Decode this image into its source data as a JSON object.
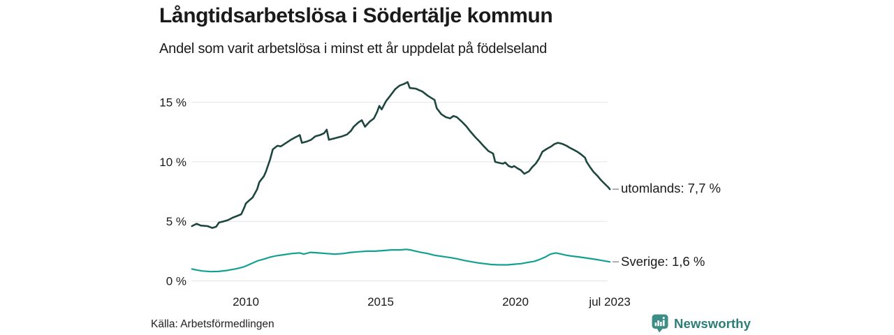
{
  "header": {
    "title": "Långtidsarbetslösa i Södertälje kommun",
    "subtitle": "Andel som varit arbetslösa i minst ett år uppdelat på födelseland"
  },
  "source": {
    "label": "Källa: Arbetsförmedlingen"
  },
  "branding": {
    "name": "Newsworthy",
    "text_color": "#2d7d77",
    "icon_color": "#3c8d86"
  },
  "colors": {
    "grid": "#e3e3e3",
    "axis_text": "#1a1a1a",
    "leader_dash": "#9b9b9b"
  },
  "chart_data": {
    "type": "line",
    "title": "Långtidsarbetslösa i Södertälje kommun",
    "subtitle": "Andel som varit arbetslösa i minst ett år uppdelat på födelseland",
    "unit": "%",
    "grid": true,
    "legend_position": "end-of-line-labels",
    "x_axis": {
      "range": [
        2008.0,
        2023.58
      ],
      "ticks": [
        {
          "value": 2010,
          "label": "2010"
        },
        {
          "value": 2015,
          "label": "2015"
        },
        {
          "value": 2020,
          "label": "2020"
        },
        {
          "value": 2023.5,
          "label": "jul 2023"
        }
      ]
    },
    "y_axis": {
      "range": [
        0,
        17.5
      ],
      "ticks": [
        {
          "value": 0,
          "label": "0 %"
        },
        {
          "value": 5,
          "label": "5 %"
        },
        {
          "value": 10,
          "label": "10 %"
        },
        {
          "value": 15,
          "label": "15 %"
        }
      ]
    },
    "series": [
      {
        "name": "utomlands",
        "label": "utomlands: 7,7 %",
        "last_value": 7.7,
        "color": "#1d463e",
        "stroke_width": 2.6,
        "points": [
          [
            2008.0,
            4.6
          ],
          [
            2008.17,
            4.8
          ],
          [
            2008.33,
            4.65
          ],
          [
            2008.58,
            4.6
          ],
          [
            2008.75,
            4.45
          ],
          [
            2008.9,
            4.55
          ],
          [
            2009.0,
            4.9
          ],
          [
            2009.17,
            5.0
          ],
          [
            2009.33,
            5.1
          ],
          [
            2009.5,
            5.3
          ],
          [
            2009.67,
            5.45
          ],
          [
            2009.83,
            5.6
          ],
          [
            2009.95,
            6.2
          ],
          [
            2010.0,
            6.5
          ],
          [
            2010.17,
            6.85
          ],
          [
            2010.25,
            7.0
          ],
          [
            2010.42,
            7.7
          ],
          [
            2010.5,
            8.3
          ],
          [
            2010.67,
            8.8
          ],
          [
            2010.75,
            9.2
          ],
          [
            2010.9,
            10.2
          ],
          [
            2011.0,
            11.05
          ],
          [
            2011.17,
            11.35
          ],
          [
            2011.3,
            11.3
          ],
          [
            2011.5,
            11.6
          ],
          [
            2011.67,
            11.85
          ],
          [
            2011.83,
            12.05
          ],
          [
            2012.0,
            12.25
          ],
          [
            2012.08,
            11.6
          ],
          [
            2012.25,
            11.7
          ],
          [
            2012.42,
            11.85
          ],
          [
            2012.58,
            12.15
          ],
          [
            2012.75,
            12.25
          ],
          [
            2012.9,
            12.4
          ],
          [
            2013.0,
            12.7
          ],
          [
            2013.08,
            11.85
          ],
          [
            2013.25,
            11.95
          ],
          [
            2013.42,
            12.05
          ],
          [
            2013.58,
            12.15
          ],
          [
            2013.75,
            12.3
          ],
          [
            2013.9,
            12.6
          ],
          [
            2014.0,
            12.95
          ],
          [
            2014.17,
            13.3
          ],
          [
            2014.3,
            13.5
          ],
          [
            2014.42,
            12.95
          ],
          [
            2014.58,
            13.35
          ],
          [
            2014.75,
            13.65
          ],
          [
            2014.87,
            14.2
          ],
          [
            2014.95,
            14.7
          ],
          [
            2015.04,
            14.4
          ],
          [
            2015.2,
            15.1
          ],
          [
            2015.37,
            15.6
          ],
          [
            2015.54,
            16.1
          ],
          [
            2015.7,
            16.4
          ],
          [
            2015.87,
            16.55
          ],
          [
            2016.0,
            16.7
          ],
          [
            2016.08,
            16.2
          ],
          [
            2016.3,
            16.15
          ],
          [
            2016.55,
            15.9
          ],
          [
            2016.75,
            15.55
          ],
          [
            2017.0,
            15.2
          ],
          [
            2017.08,
            14.5
          ],
          [
            2017.25,
            14.0
          ],
          [
            2017.42,
            13.75
          ],
          [
            2017.58,
            13.65
          ],
          [
            2017.7,
            13.85
          ],
          [
            2017.83,
            13.75
          ],
          [
            2018.0,
            13.4
          ],
          [
            2018.17,
            13.0
          ],
          [
            2018.33,
            12.55
          ],
          [
            2018.5,
            12.1
          ],
          [
            2018.67,
            11.7
          ],
          [
            2018.83,
            11.3
          ],
          [
            2019.0,
            10.9
          ],
          [
            2019.17,
            10.7
          ],
          [
            2019.25,
            10.0
          ],
          [
            2019.42,
            9.9
          ],
          [
            2019.54,
            9.85
          ],
          [
            2019.62,
            9.95
          ],
          [
            2019.75,
            9.65
          ],
          [
            2019.87,
            9.55
          ],
          [
            2019.95,
            9.65
          ],
          [
            2020.08,
            9.45
          ],
          [
            2020.2,
            9.3
          ],
          [
            2020.33,
            9.0
          ],
          [
            2020.5,
            9.2
          ],
          [
            2020.62,
            9.55
          ],
          [
            2020.75,
            9.85
          ],
          [
            2020.87,
            10.25
          ],
          [
            2021.0,
            10.85
          ],
          [
            2021.17,
            11.1
          ],
          [
            2021.33,
            11.3
          ],
          [
            2021.45,
            11.5
          ],
          [
            2021.58,
            11.6
          ],
          [
            2021.75,
            11.5
          ],
          [
            2021.9,
            11.35
          ],
          [
            2022.0,
            11.2
          ],
          [
            2022.17,
            11.0
          ],
          [
            2022.33,
            10.8
          ],
          [
            2022.45,
            10.6
          ],
          [
            2022.58,
            10.35
          ],
          [
            2022.64,
            10.0
          ],
          [
            2022.77,
            9.55
          ],
          [
            2022.9,
            9.15
          ],
          [
            2023.03,
            8.85
          ],
          [
            2023.16,
            8.5
          ],
          [
            2023.29,
            8.2
          ],
          [
            2023.38,
            8.0
          ],
          [
            2023.45,
            7.85
          ],
          [
            2023.5,
            7.7
          ]
        ]
      },
      {
        "name": "Sverige",
        "label": "Sverige: 1,6 %",
        "last_value": 1.6,
        "color": "#12a093",
        "stroke_width": 2.2,
        "points": [
          [
            2008.0,
            1.0
          ],
          [
            2008.2,
            0.9
          ],
          [
            2008.4,
            0.83
          ],
          [
            2008.7,
            0.78
          ],
          [
            2009.0,
            0.8
          ],
          [
            2009.3,
            0.88
          ],
          [
            2009.6,
            1.0
          ],
          [
            2009.8,
            1.1
          ],
          [
            2009.95,
            1.2
          ],
          [
            2010.2,
            1.45
          ],
          [
            2010.45,
            1.7
          ],
          [
            2010.7,
            1.85
          ],
          [
            2010.9,
            2.0
          ],
          [
            2011.1,
            2.1
          ],
          [
            2011.4,
            2.2
          ],
          [
            2011.7,
            2.3
          ],
          [
            2012.0,
            2.35
          ],
          [
            2012.15,
            2.25
          ],
          [
            2012.4,
            2.4
          ],
          [
            2012.7,
            2.35
          ],
          [
            2013.0,
            2.3
          ],
          [
            2013.3,
            2.25
          ],
          [
            2013.6,
            2.3
          ],
          [
            2013.9,
            2.4
          ],
          [
            2014.2,
            2.45
          ],
          [
            2014.5,
            2.5
          ],
          [
            2014.8,
            2.5
          ],
          [
            2015.1,
            2.55
          ],
          [
            2015.4,
            2.6
          ],
          [
            2015.7,
            2.6
          ],
          [
            2015.95,
            2.65
          ],
          [
            2016.1,
            2.6
          ],
          [
            2016.3,
            2.5
          ],
          [
            2016.5,
            2.4
          ],
          [
            2016.75,
            2.3
          ],
          [
            2017.0,
            2.15
          ],
          [
            2017.3,
            2.05
          ],
          [
            2017.6,
            1.95
          ],
          [
            2017.85,
            1.85
          ],
          [
            2018.1,
            1.72
          ],
          [
            2018.35,
            1.62
          ],
          [
            2018.6,
            1.52
          ],
          [
            2018.85,
            1.45
          ],
          [
            2019.1,
            1.38
          ],
          [
            2019.4,
            1.35
          ],
          [
            2019.7,
            1.35
          ],
          [
            2019.95,
            1.4
          ],
          [
            2020.2,
            1.45
          ],
          [
            2020.45,
            1.55
          ],
          [
            2020.7,
            1.65
          ],
          [
            2020.9,
            1.8
          ],
          [
            2021.1,
            2.0
          ],
          [
            2021.3,
            2.25
          ],
          [
            2021.5,
            2.35
          ],
          [
            2021.7,
            2.25
          ],
          [
            2021.9,
            2.15
          ],
          [
            2022.1,
            2.08
          ],
          [
            2022.4,
            2.0
          ],
          [
            2022.7,
            1.9
          ],
          [
            2022.95,
            1.82
          ],
          [
            2023.2,
            1.72
          ],
          [
            2023.5,
            1.6
          ]
        ]
      }
    ]
  }
}
